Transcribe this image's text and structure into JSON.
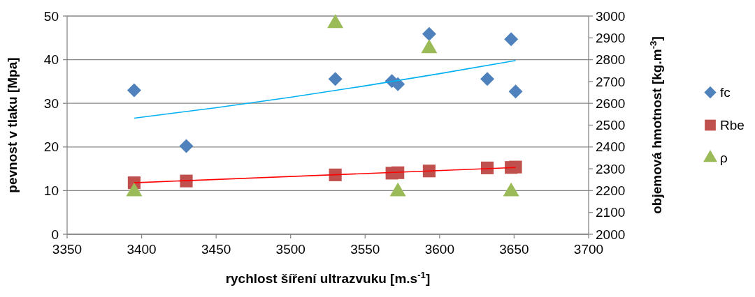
{
  "chart_data": {
    "type": "scatter",
    "xlabel": "rychlost šíření ultrazvuku [m.s$^{-1}$]",
    "ylabel": "pevnost v tlaku [Mpa]",
    "y2label": "objemová hmotnost [kg.m$^{-3}$]",
    "xlim": [
      3350,
      3700
    ],
    "xticks": [
      3350,
      3400,
      3450,
      3500,
      3550,
      3600,
      3650,
      3700
    ],
    "ylim": [
      0,
      50
    ],
    "yticks": [
      0,
      10,
      20,
      30,
      40,
      50
    ],
    "y2lim": [
      2000,
      3000
    ],
    "y2ticks": [
      2000,
      2100,
      2200,
      2300,
      2400,
      2500,
      2600,
      2700,
      2800,
      2900,
      3000
    ],
    "grid": "y",
    "legend": "right",
    "series": [
      {
        "name": "fc",
        "color": "#4f81bd",
        "marker": "diamond",
        "x": [
          3395,
          3430,
          3530,
          3568,
          3572,
          3593,
          3632,
          3648,
          3651
        ],
        "values": [
          33.0,
          20.2,
          35.6,
          35.1,
          34.4,
          45.9,
          35.6,
          44.7,
          32.7
        ]
      },
      {
        "name": "Rbe",
        "color": "#c0504d",
        "marker": "square",
        "x": [
          3395,
          3430,
          3530,
          3568,
          3572,
          3593,
          3632,
          3648,
          3651
        ],
        "values": [
          11.8,
          12.2,
          13.6,
          14.0,
          14.1,
          14.5,
          15.2,
          15.3,
          15.4
        ]
      },
      {
        "name": "ρ",
        "color": "#9bbb59",
        "marker": "triangle",
        "axis": "y2",
        "x": [
          3395,
          3530,
          3572,
          3593,
          3648
        ],
        "values": [
          2195,
          2966,
          2195,
          2851,
          2195
        ]
      },
      {
        "type": "line",
        "color": "#00b0f0",
        "x": [
          3395,
          3450,
          3500,
          3550,
          3600,
          3651
        ],
        "values": [
          26.6,
          29.0,
          31.4,
          34.0,
          36.8,
          39.8
        ]
      },
      {
        "type": "line",
        "color": "#ff0000",
        "x": [
          3395,
          3651
        ],
        "values": [
          11.8,
          15.3
        ]
      }
    ]
  }
}
